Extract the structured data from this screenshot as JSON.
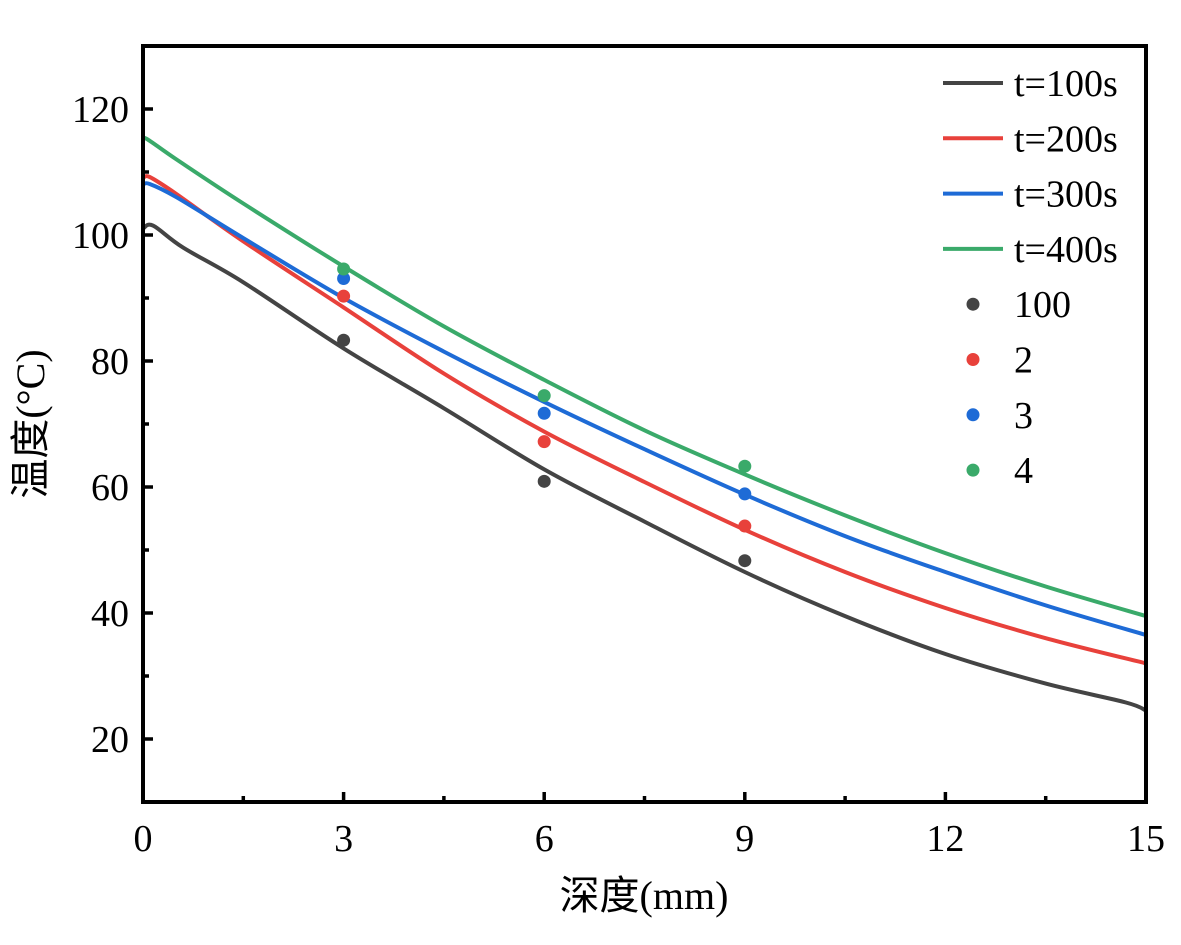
{
  "chart_data": {
    "type": "line",
    "xlabel": "深度(mm)",
    "ylabel": "温度(°C)",
    "xlim": [
      0,
      15
    ],
    "ylim": [
      10,
      130
    ],
    "xticks": [
      0,
      3,
      6,
      9,
      12,
      15
    ],
    "yticks": [
      20,
      40,
      60,
      80,
      100,
      120
    ],
    "grid": false,
    "legend": "top-right",
    "series": [
      {
        "name": "t=100s",
        "kind": "line",
        "color": "#444444",
        "x": [
          0,
          0.15,
          0.6,
          1.5,
          3,
          4.5,
          6,
          7.5,
          9,
          10.5,
          12,
          13.5,
          14.7,
          15
        ],
        "y": [
          101,
          101.5,
          98,
          92.5,
          82,
          72.5,
          62.8,
          54.5,
          46.5,
          39.5,
          33.5,
          28.8,
          25.8,
          24.5
        ]
      },
      {
        "name": "t=200s",
        "kind": "line",
        "color": "#e8413b",
        "x": [
          0,
          0.1,
          0.5,
          1.5,
          3,
          4.5,
          6,
          7.5,
          9,
          10.5,
          12,
          13.5,
          15
        ],
        "y": [
          109,
          109.2,
          106.5,
          99,
          88.5,
          78,
          68.8,
          60.8,
          53.2,
          46.5,
          40.8,
          36,
          32
        ]
      },
      {
        "name": "t=300s",
        "kind": "line",
        "color": "#1e6bd6",
        "x": [
          0,
          0.1,
          0.5,
          1.5,
          3,
          4.5,
          6,
          7.5,
          9,
          10.5,
          12,
          13.5,
          15
        ],
        "y": [
          108,
          108.1,
          106,
          99.5,
          90,
          81.5,
          73.5,
          66,
          58.8,
          52.2,
          46.5,
          41.2,
          36.5
        ]
      },
      {
        "name": "t=400s",
        "kind": "line",
        "color": "#3aaa6a",
        "x": [
          0,
          0.05,
          0.5,
          1.5,
          3,
          4.5,
          6,
          7.5,
          9,
          10.5,
          12,
          13.5,
          15
        ],
        "y": [
          115,
          115.3,
          112,
          105,
          95,
          85.5,
          77,
          69,
          62,
          55.5,
          49.5,
          44.2,
          39.5
        ]
      },
      {
        "name": "100",
        "kind": "scatter",
        "color": "#444444",
        "x": [
          3,
          6,
          9
        ],
        "y": [
          83.3,
          60.9,
          48.3
        ]
      },
      {
        "name": "2",
        "kind": "scatter",
        "color": "#e8413b",
        "x": [
          3,
          6,
          9
        ],
        "y": [
          90.3,
          67.2,
          53.8
        ]
      },
      {
        "name": "3",
        "kind": "scatter",
        "color": "#1e6bd6",
        "x": [
          3,
          6,
          9
        ],
        "y": [
          93.1,
          71.7,
          58.9
        ]
      },
      {
        "name": "4",
        "kind": "scatter",
        "color": "#3aaa6a",
        "x": [
          3,
          6,
          9
        ],
        "y": [
          94.6,
          74.5,
          63.3
        ]
      }
    ]
  }
}
